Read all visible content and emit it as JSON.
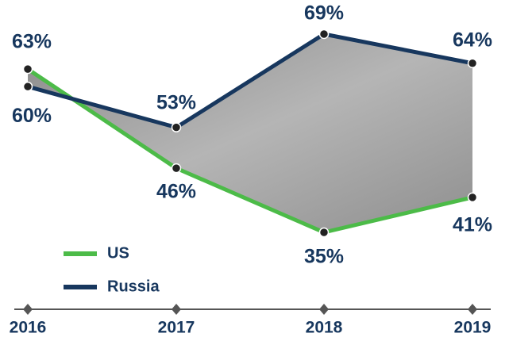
{
  "chart_data": {
    "type": "line",
    "categories": [
      "2016",
      "2017",
      "2018",
      "2019"
    ],
    "series": [
      {
        "name": "US",
        "color": "#4cbb48",
        "values": [
          63,
          46,
          35,
          41
        ],
        "value_labels": [
          "63%",
          "46%",
          "35%",
          "41%"
        ]
      },
      {
        "name": "Russia",
        "color": "#17375e",
        "values": [
          60,
          53,
          69,
          64
        ],
        "value_labels": [
          "60%",
          "53%",
          "69%",
          "64%"
        ]
      }
    ],
    "legend": "bottom-left"
  }
}
